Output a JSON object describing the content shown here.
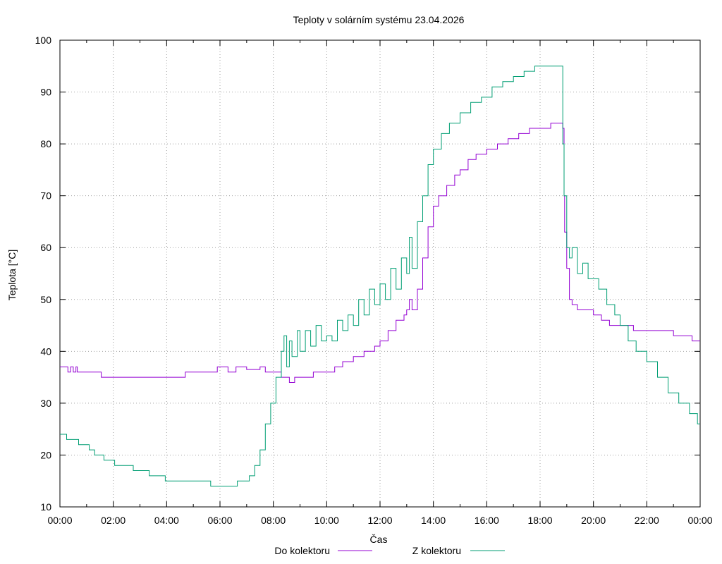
{
  "chart_data": {
    "type": "line",
    "title": "Teploty v solárním systému 23.04.2026",
    "xlabel": "Čas",
    "ylabel": "Teplota [°C]",
    "x_unit": "hours",
    "xlim": [
      0,
      24
    ],
    "ylim": [
      10,
      100
    ],
    "y_ticks": [
      10,
      20,
      30,
      40,
      50,
      60,
      70,
      80,
      90,
      100
    ],
    "x_ticks": [
      {
        "x": 0,
        "label": "00:00"
      },
      {
        "x": 2,
        "label": "02:00"
      },
      {
        "x": 4,
        "label": "04:00"
      },
      {
        "x": 6,
        "label": "06:00"
      },
      {
        "x": 8,
        "label": "08:00"
      },
      {
        "x": 10,
        "label": "10:00"
      },
      {
        "x": 12,
        "label": "12:00"
      },
      {
        "x": 14,
        "label": "14:00"
      },
      {
        "x": 16,
        "label": "16:00"
      },
      {
        "x": 18,
        "label": "18:00"
      },
      {
        "x": 20,
        "label": "20:00"
      },
      {
        "x": 22,
        "label": "22:00"
      },
      {
        "x": 24,
        "label": "00:00"
      }
    ],
    "grid": true,
    "legend_position": "bottom",
    "series": [
      {
        "name": "Do kolektoru",
        "color": "#9400d3",
        "points": [
          [
            0.0,
            37
          ],
          [
            0.25,
            37
          ],
          [
            0.3,
            36
          ],
          [
            0.4,
            37
          ],
          [
            0.5,
            36
          ],
          [
            0.6,
            37
          ],
          [
            0.65,
            36
          ],
          [
            1.5,
            36
          ],
          [
            1.55,
            35
          ],
          [
            3.0,
            35
          ],
          [
            4.6,
            35
          ],
          [
            4.7,
            36
          ],
          [
            5.8,
            36
          ],
          [
            5.9,
            37
          ],
          [
            6.2,
            37
          ],
          [
            6.3,
            36
          ],
          [
            6.6,
            37
          ],
          [
            7.0,
            36.5
          ],
          [
            7.5,
            37
          ],
          [
            7.7,
            36
          ],
          [
            8.0,
            36
          ],
          [
            8.3,
            35
          ],
          [
            8.6,
            34
          ],
          [
            8.8,
            35
          ],
          [
            9.0,
            35
          ],
          [
            9.3,
            35
          ],
          [
            9.5,
            36
          ],
          [
            10.0,
            36
          ],
          [
            10.3,
            37
          ],
          [
            10.6,
            38
          ],
          [
            11.0,
            39
          ],
          [
            11.4,
            40
          ],
          [
            11.8,
            41
          ],
          [
            12.0,
            42
          ],
          [
            12.3,
            44
          ],
          [
            12.6,
            46
          ],
          [
            12.9,
            47
          ],
          [
            13.0,
            48
          ],
          [
            13.1,
            50
          ],
          [
            13.2,
            48
          ],
          [
            13.4,
            52
          ],
          [
            13.6,
            58
          ],
          [
            13.8,
            64
          ],
          [
            14.0,
            68
          ],
          [
            14.2,
            70
          ],
          [
            14.5,
            72
          ],
          [
            14.8,
            74
          ],
          [
            15.0,
            75
          ],
          [
            15.3,
            77
          ],
          [
            15.6,
            78
          ],
          [
            16.0,
            79
          ],
          [
            16.4,
            80
          ],
          [
            16.8,
            81
          ],
          [
            17.2,
            82
          ],
          [
            17.6,
            83
          ],
          [
            18.0,
            83
          ],
          [
            18.4,
            84
          ],
          [
            18.8,
            84
          ],
          [
            18.85,
            83
          ],
          [
            18.9,
            70
          ],
          [
            18.92,
            63
          ],
          [
            19.0,
            56
          ],
          [
            19.1,
            50
          ],
          [
            19.2,
            49
          ],
          [
            19.4,
            48
          ],
          [
            19.6,
            48
          ],
          [
            20.0,
            47
          ],
          [
            20.3,
            46
          ],
          [
            20.6,
            45
          ],
          [
            21.0,
            45
          ],
          [
            21.5,
            44
          ],
          [
            22.0,
            44
          ],
          [
            22.5,
            44
          ],
          [
            23.0,
            43
          ],
          [
            23.5,
            43
          ],
          [
            23.7,
            42
          ],
          [
            24.0,
            42
          ]
        ]
      },
      {
        "name": "Z kolektoru",
        "color": "#009e73",
        "points": [
          [
            0.0,
            24
          ],
          [
            0.2,
            24
          ],
          [
            0.25,
            23
          ],
          [
            0.6,
            23
          ],
          [
            0.7,
            22
          ],
          [
            1.0,
            22
          ],
          [
            1.1,
            21
          ],
          [
            1.2,
            21
          ],
          [
            1.3,
            20
          ],
          [
            1.6,
            20
          ],
          [
            1.65,
            19
          ],
          [
            2.0,
            19
          ],
          [
            2.05,
            18
          ],
          [
            2.7,
            18
          ],
          [
            2.75,
            17
          ],
          [
            3.3,
            17
          ],
          [
            3.35,
            16
          ],
          [
            3.9,
            16
          ],
          [
            3.95,
            15
          ],
          [
            5.6,
            15
          ],
          [
            5.65,
            14
          ],
          [
            6.6,
            14
          ],
          [
            6.65,
            15
          ],
          [
            7.0,
            15
          ],
          [
            7.1,
            16
          ],
          [
            7.3,
            18
          ],
          [
            7.5,
            21
          ],
          [
            7.7,
            26
          ],
          [
            7.9,
            30
          ],
          [
            8.1,
            35
          ],
          [
            8.3,
            40
          ],
          [
            8.4,
            43
          ],
          [
            8.5,
            37
          ],
          [
            8.6,
            42
          ],
          [
            8.7,
            39
          ],
          [
            8.9,
            44
          ],
          [
            9.0,
            40
          ],
          [
            9.2,
            44
          ],
          [
            9.4,
            41
          ],
          [
            9.6,
            45
          ],
          [
            9.8,
            42
          ],
          [
            10.0,
            43
          ],
          [
            10.2,
            42
          ],
          [
            10.4,
            46
          ],
          [
            10.6,
            44
          ],
          [
            10.8,
            47
          ],
          [
            11.0,
            45
          ],
          [
            11.2,
            50
          ],
          [
            11.4,
            47
          ],
          [
            11.6,
            52
          ],
          [
            11.8,
            49
          ],
          [
            12.0,
            53
          ],
          [
            12.2,
            50
          ],
          [
            12.4,
            56
          ],
          [
            12.6,
            52
          ],
          [
            12.8,
            58
          ],
          [
            13.0,
            55
          ],
          [
            13.1,
            62
          ],
          [
            13.2,
            56
          ],
          [
            13.4,
            65
          ],
          [
            13.6,
            70
          ],
          [
            13.8,
            76
          ],
          [
            14.0,
            79
          ],
          [
            14.3,
            82
          ],
          [
            14.6,
            84
          ],
          [
            15.0,
            86
          ],
          [
            15.4,
            88
          ],
          [
            15.8,
            89
          ],
          [
            16.2,
            91
          ],
          [
            16.6,
            92
          ],
          [
            17.0,
            93
          ],
          [
            17.4,
            94
          ],
          [
            17.8,
            95
          ],
          [
            18.2,
            95
          ],
          [
            18.5,
            95
          ],
          [
            18.8,
            95
          ],
          [
            18.85,
            80
          ],
          [
            18.9,
            70
          ],
          [
            19.0,
            60
          ],
          [
            19.1,
            58
          ],
          [
            19.2,
            60
          ],
          [
            19.4,
            55
          ],
          [
            19.6,
            57
          ],
          [
            19.8,
            54
          ],
          [
            20.0,
            54
          ],
          [
            20.2,
            52
          ],
          [
            20.5,
            49
          ],
          [
            20.8,
            47
          ],
          [
            21.0,
            45
          ],
          [
            21.3,
            42
          ],
          [
            21.6,
            40
          ],
          [
            22.0,
            38
          ],
          [
            22.4,
            35
          ],
          [
            22.8,
            32
          ],
          [
            23.2,
            30
          ],
          [
            23.6,
            28
          ],
          [
            23.9,
            26
          ],
          [
            24.0,
            26
          ]
        ]
      }
    ]
  }
}
